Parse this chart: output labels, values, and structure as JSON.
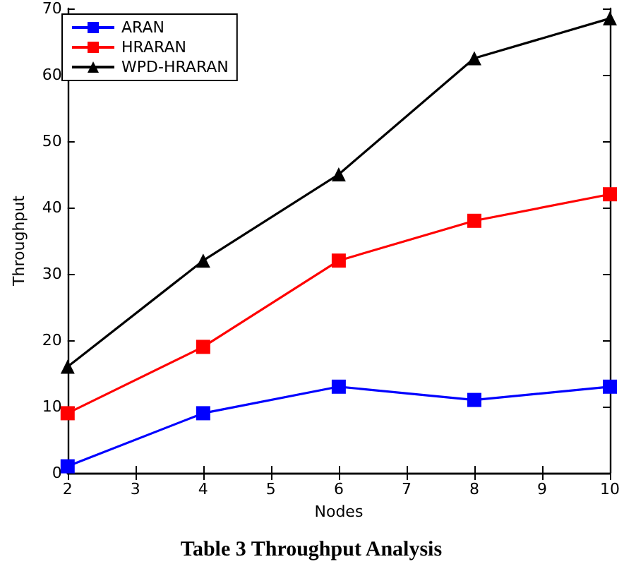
{
  "chart_data": {
    "type": "line",
    "xlabel": "Nodes",
    "ylabel": "Throughput",
    "annotations": [
      "Table 3 Throughput Analysis"
    ],
    "x": [
      2,
      4,
      6,
      8,
      10
    ],
    "series": [
      {
        "name": "ARAN",
        "color": "#0000ff",
        "marker": "square",
        "values": [
          1,
          9,
          13,
          11,
          13
        ]
      },
      {
        "name": "HRARAN",
        "color": "#ff0000",
        "marker": "square",
        "values": [
          9,
          19,
          32,
          38,
          42
        ]
      },
      {
        "name": "WPD-HRARAN",
        "color": "#000000",
        "marker": "triangle",
        "values": [
          16,
          32,
          45,
          62.5,
          68.5
        ]
      }
    ],
    "xlim": [
      2,
      10
    ],
    "xticks": [
      2,
      3,
      4,
      5,
      6,
      7,
      8,
      9,
      10
    ],
    "ylim": [
      0,
      70
    ],
    "yticks": [
      0,
      10,
      20,
      30,
      40,
      50,
      60,
      70
    ],
    "grid": false,
    "legend": "top left",
    "line_style": "solid"
  }
}
